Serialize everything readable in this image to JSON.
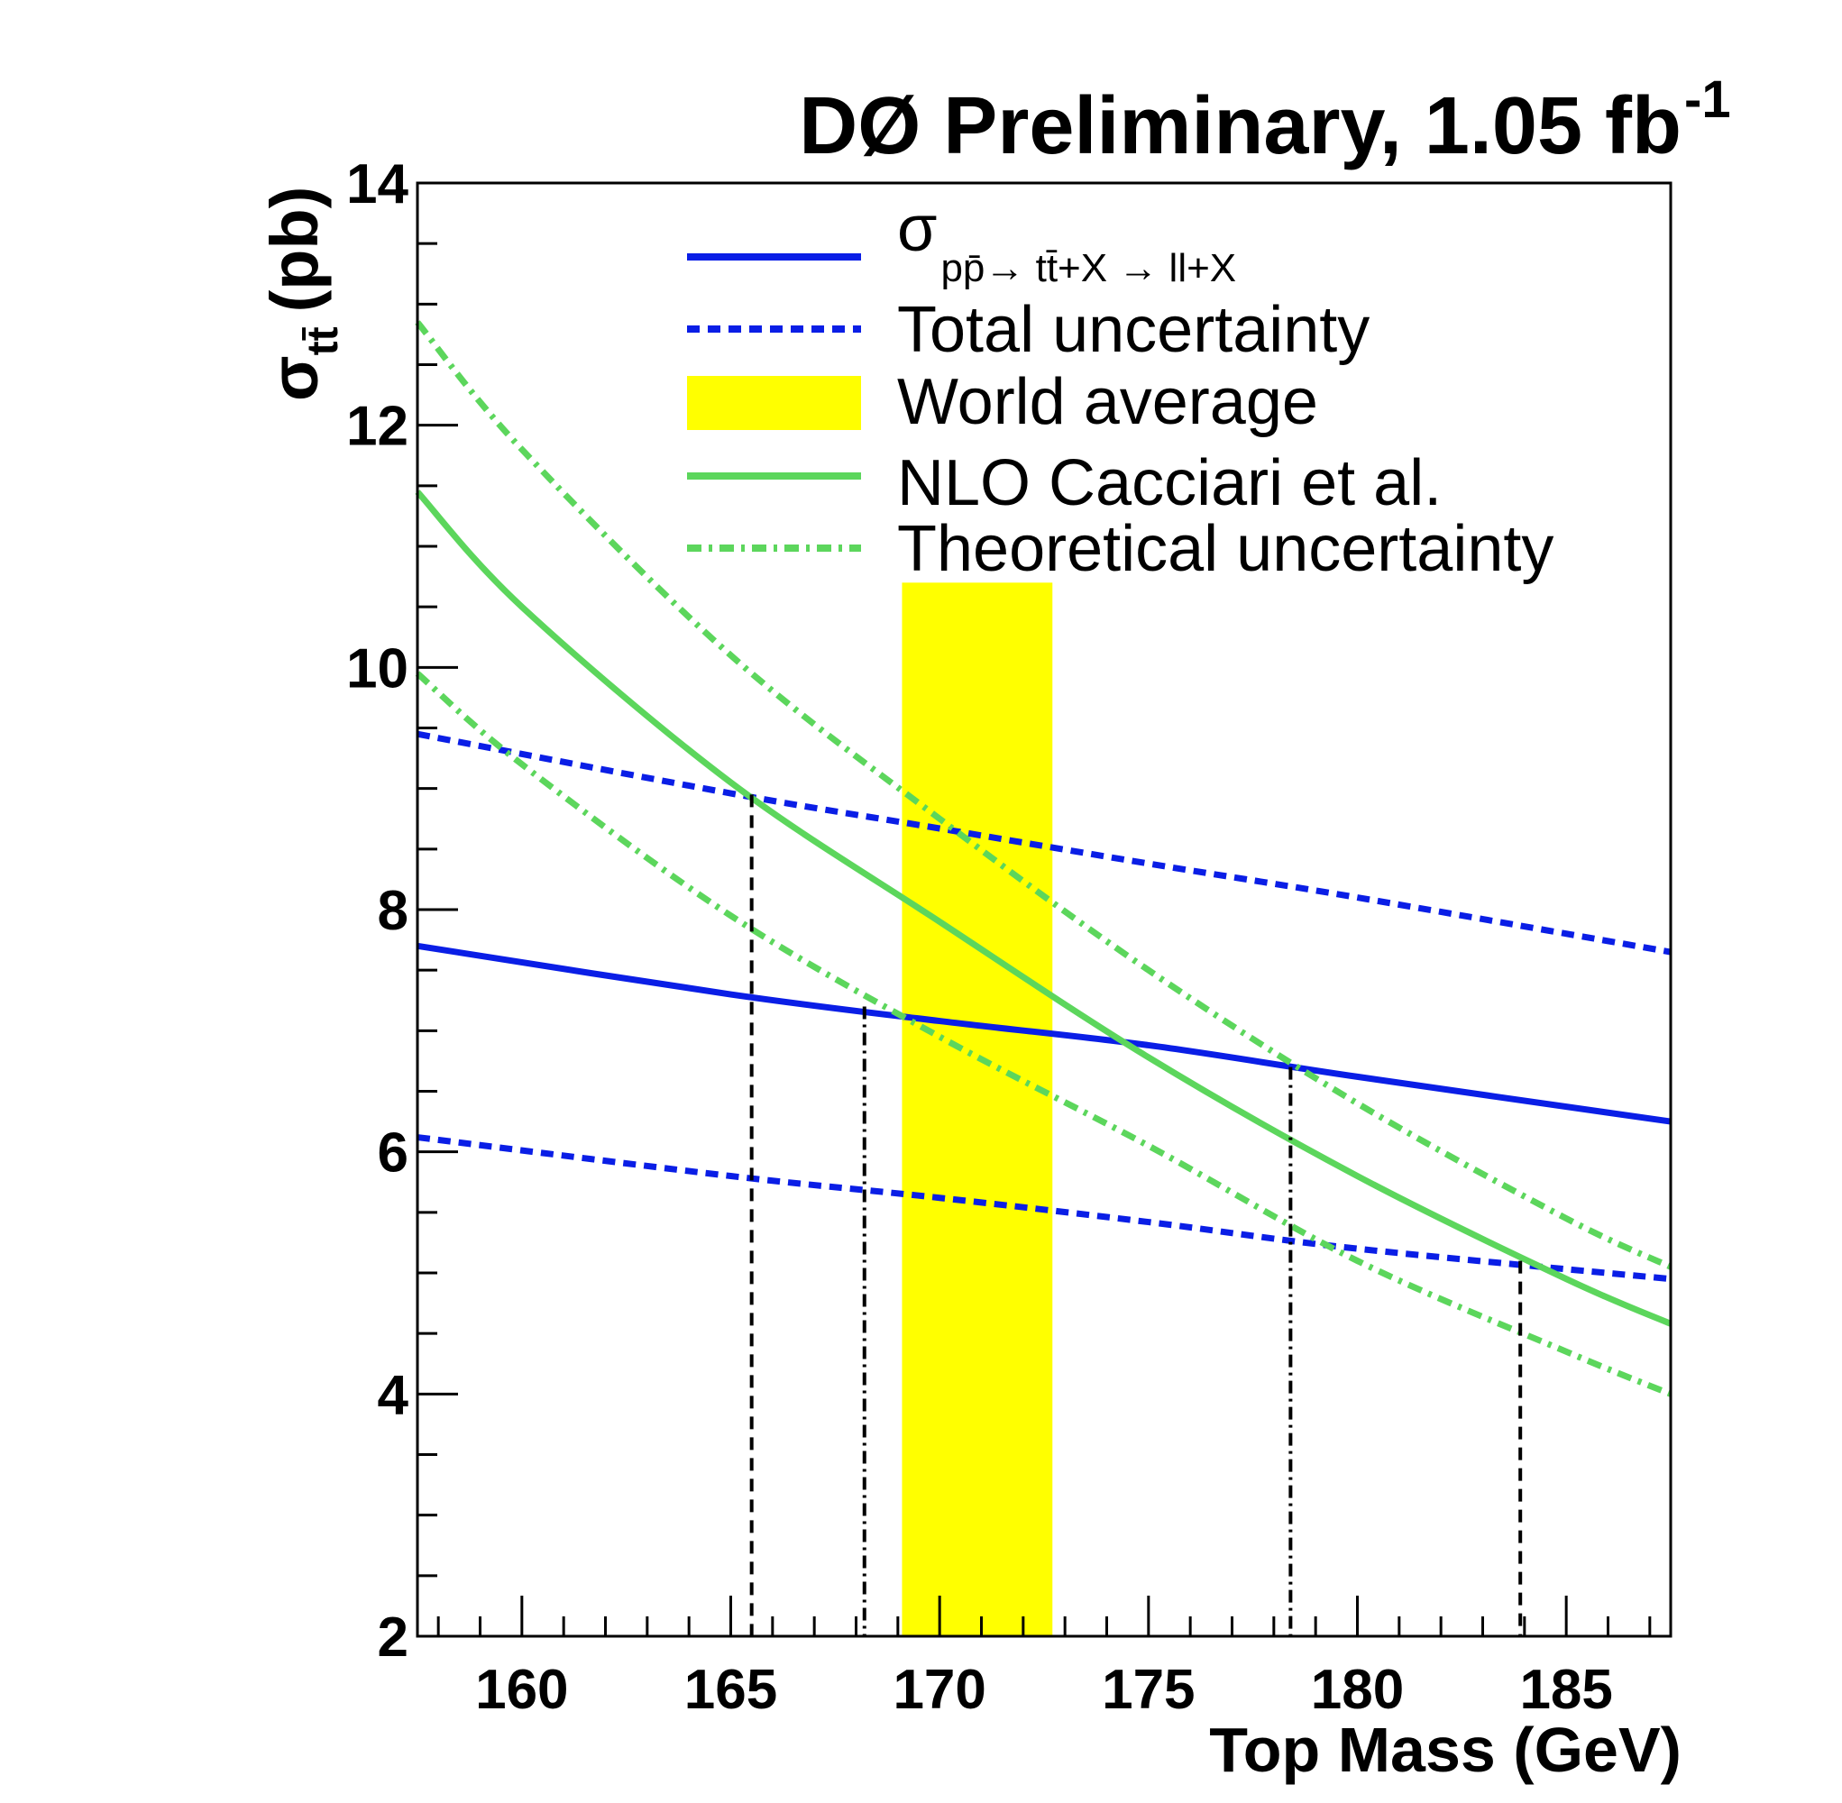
{
  "chart_data": {
    "type": "line",
    "title": "DØ Preliminary, 1.05 fb",
    "title_superscript": "-1",
    "xlabel": "Top Mass (GeV)",
    "ylabel": {
      "symbol": "σ",
      "subscript": "tt̄",
      "unit": "(pb)"
    },
    "xlim": [
      157.5,
      187.5
    ],
    "ylim": [
      2,
      14
    ],
    "x_ticks": [
      "160",
      "165",
      "170",
      "175",
      "180",
      "185"
    ],
    "x_tick_values": [
      160,
      165,
      170,
      175,
      180,
      185
    ],
    "y_ticks": [
      "2",
      "4",
      "6",
      "8",
      "10",
      "12",
      "14"
    ],
    "y_tick_values": [
      2,
      4,
      6,
      8,
      10,
      12,
      14
    ],
    "legend_position": "top-right",
    "legend": [
      {
        "key": "measured",
        "symbol": "σ",
        "subscript": "pp̄→ tt̄+X → ll+X",
        "style": "solid",
        "color": "#0a1ee6"
      },
      {
        "key": "total_unc",
        "label": "Total uncertainty",
        "style": "dashed",
        "color": "#0a1ee6"
      },
      {
        "key": "world_avg",
        "label": "World average",
        "style": "band",
        "color": "#ffff00"
      },
      {
        "key": "nlo",
        "label": "NLO Cacciari et al.",
        "style": "solid",
        "color": "#5cd65c"
      },
      {
        "key": "theory_unc",
        "label": "Theoretical uncertainty",
        "style": "dashdot",
        "color": "#5cd65c"
      }
    ],
    "series": [
      {
        "name": "Measured cross section",
        "key": "measured",
        "color": "#0a1ee6",
        "style": "solid",
        "x": [
          157.5,
          165,
          170,
          175,
          180,
          187.5
        ],
        "y": [
          7.7,
          7.3,
          7.08,
          6.88,
          6.62,
          6.25
        ]
      },
      {
        "name": "Total uncertainty upper",
        "key": "total_unc",
        "color": "#0a1ee6",
        "style": "dashed",
        "x": [
          157.5,
          165,
          170,
          175,
          180,
          187.5
        ],
        "y": [
          9.45,
          8.96,
          8.67,
          8.38,
          8.1,
          7.65
        ]
      },
      {
        "name": "Total uncertainty lower",
        "key": "total_unc",
        "color": "#0a1ee6",
        "style": "dashed",
        "x": [
          157.5,
          165,
          170,
          175,
          180,
          187.5
        ],
        "y": [
          6.12,
          5.8,
          5.62,
          5.42,
          5.2,
          4.95
        ]
      },
      {
        "name": "NLO Cacciari et al.",
        "key": "nlo",
        "color": "#5cd65c",
        "style": "solid",
        "x": [
          157.5,
          160,
          165,
          170,
          175,
          180,
          185,
          187.5
        ],
        "y": [
          11.45,
          10.5,
          9.05,
          7.9,
          6.78,
          5.8,
          4.95,
          4.58
        ]
      },
      {
        "name": "Theoretical uncertainty upper",
        "key": "theory_unc",
        "color": "#5cd65c",
        "style": "dashdot",
        "x": [
          157.5,
          160,
          165,
          170,
          175,
          180,
          185,
          187.5
        ],
        "y": [
          12.85,
          11.8,
          10.1,
          8.75,
          7.5,
          6.4,
          5.45,
          5.05
        ]
      },
      {
        "name": "Theoretical uncertainty lower",
        "key": "theory_unc",
        "color": "#5cd65c",
        "style": "dashdot",
        "x": [
          157.5,
          160,
          165,
          170,
          175,
          180,
          185,
          187.5
        ],
        "y": [
          9.95,
          9.2,
          7.95,
          6.95,
          6.05,
          5.1,
          4.35,
          4.0
        ]
      }
    ],
    "world_average_band": {
      "x_min": 169.1,
      "x_max": 172.7,
      "y_min": 2,
      "y_max": 10.7,
      "color": "#ffff00"
    },
    "intersection_lines": [
      {
        "x": 165.5,
        "y_top": 8.95,
        "style": "dashed"
      },
      {
        "x": 168.2,
        "y_top": 7.2,
        "style": "dashdot"
      },
      {
        "x": 178.4,
        "y_top": 6.7,
        "style": "dashdot"
      },
      {
        "x": 183.9,
        "y_top": 5.1,
        "style": "dashed"
      }
    ]
  }
}
